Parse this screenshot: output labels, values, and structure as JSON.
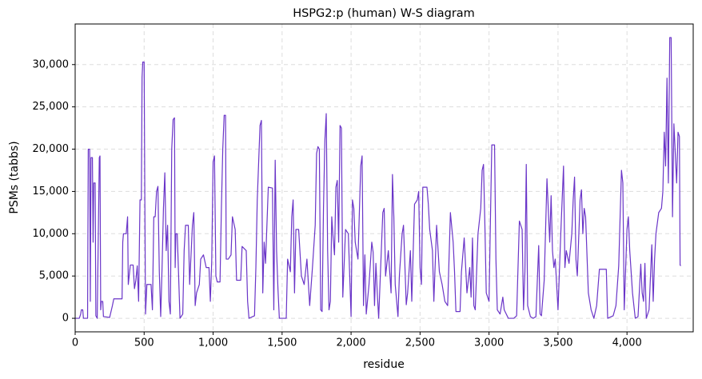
{
  "chart_data": {
    "type": "line",
    "title": "HSPG2:p (human) W-S diagram",
    "x_label": "residue",
    "y_label": "PSMs (tabbs)",
    "xlim": [
      0,
      4480
    ],
    "ylim": [
      -1600,
      34800
    ],
    "xticks": [
      0,
      500,
      {
        "value": 1000,
        "label": "1,000"
      },
      {
        "value": 1500,
        "label": "1,500"
      },
      {
        "value": 2000,
        "label": "2,000"
      },
      {
        "value": 2500,
        "label": "2,500"
      },
      {
        "value": 3000,
        "label": "3,000"
      },
      {
        "value": 3500,
        "label": "3,500"
      },
      {
        "value": 4000,
        "label": "4,000"
      }
    ],
    "yticks": [
      0,
      {
        "value": 5000,
        "label": "5,000"
      },
      {
        "value": 10000,
        "label": "10,000"
      },
      {
        "value": 15000,
        "label": "15,000"
      },
      {
        "value": 20000,
        "label": "20,000"
      },
      {
        "value": 25000,
        "label": "25,000"
      },
      {
        "value": 30000,
        "label": "30,000"
      }
    ],
    "grid": true,
    "series": [
      {
        "color": "#6a35c8",
        "x": [
          0,
          30,
          40,
          45,
          55,
          60,
          90,
          95,
          105,
          110,
          115,
          125,
          130,
          135,
          145,
          150,
          160,
          175,
          180,
          185,
          190,
          200,
          205,
          250,
          270,
          280,
          340,
          345,
          350,
          370,
          380,
          385,
          400,
          420,
          430,
          440,
          450,
          460,
          470,
          480,
          485,
          490,
          500,
          505,
          510,
          520,
          550,
          560,
          570,
          580,
          590,
          600,
          610,
          620,
          630,
          640,
          650,
          660,
          670,
          680,
          690,
          700,
          710,
          720,
          725,
          730,
          740,
          750,
          760,
          780,
          790,
          800,
          820,
          830,
          850,
          860,
          870,
          880,
          900,
          910,
          930,
          950,
          970,
          980,
          990,
          1000,
          1010,
          1020,
          1030,
          1050,
          1060,
          1070,
          1080,
          1090,
          1095,
          1110,
          1130,
          1140,
          1160,
          1170,
          1200,
          1210,
          1240,
          1250,
          1260,
          1300,
          1310,
          1320,
          1340,
          1350,
          1360,
          1370,
          1380,
          1400,
          1430,
          1440,
          1450,
          1460,
          1470,
          1480,
          1530,
          1540,
          1560,
          1570,
          1580,
          1590,
          1600,
          1620,
          1640,
          1660,
          1680,
          1700,
          1720,
          1740,
          1750,
          1760,
          1770,
          1780,
          1790,
          1800,
          1810,
          1820,
          1830,
          1840,
          1850,
          1860,
          1870,
          1880,
          1890,
          1900,
          1910,
          1920,
          1930,
          1940,
          1960,
          1980,
          2000,
          2010,
          2020,
          2030,
          2050,
          2070,
          2080,
          2090,
          2100,
          2110,
          2130,
          2150,
          2160,
          2170,
          2180,
          2190,
          2200,
          2230,
          2240,
          2250,
          2270,
          2290,
          2300,
          2310,
          2320,
          2340,
          2350,
          2370,
          2380,
          2400,
          2410,
          2430,
          2440,
          2460,
          2480,
          2490,
          2500,
          2510,
          2520,
          2550,
          2560,
          2570,
          2590,
          2600,
          2620,
          2640,
          2660,
          2680,
          2700,
          2720,
          2740,
          2750,
          2760,
          2790,
          2800,
          2820,
          2840,
          2860,
          2870,
          2880,
          2890,
          2900,
          2920,
          2940,
          2950,
          2960,
          2970,
          2980,
          3000,
          3010,
          3020,
          3040,
          3050,
          3060,
          3080,
          3100,
          3110,
          3140,
          3180,
          3200,
          3220,
          3240,
          3250,
          3260,
          3270,
          3280,
          3300,
          3320,
          3340,
          3360,
          3370,
          3380,
          3400,
          3420,
          3440,
          3450,
          3460,
          3470,
          3480,
          3500,
          3520,
          3540,
          3550,
          3560,
          3580,
          3600,
          3610,
          3620,
          3630,
          3640,
          3660,
          3670,
          3680,
          3690,
          3700,
          3710,
          3720,
          3740,
          3760,
          3780,
          3800,
          3850,
          3860,
          3900,
          3920,
          3940,
          3960,
          3970,
          3980,
          4000,
          4010,
          4020,
          4040,
          4060,
          4080,
          4100,
          4110,
          4120,
          4130,
          4140,
          4160,
          4180,
          4190,
          4200,
          4210,
          4230,
          4250,
          4260,
          4270,
          4280,
          4290,
          4300,
          4310,
          4320,
          4330,
          4340,
          4360,
          4370,
          4380,
          4385,
          4390
        ],
        "values": [
          0,
          0,
          500,
          1000,
          1000,
          0,
          0,
          20000,
          20000,
          2000,
          19000,
          19000,
          9000,
          16000,
          16000,
          300,
          0,
          19000,
          19200,
          1000,
          2000,
          2000,
          200,
          100,
          1500,
          2300,
          2300,
          9000,
          10000,
          10000,
          12000,
          4000,
          6300,
          6300,
          3500,
          4500,
          6200,
          2000,
          14000,
          14000,
          28500,
          30300,
          30300,
          14000,
          500,
          4000,
          4000,
          1000,
          12000,
          12000,
          15000,
          15600,
          5500,
          200,
          6000,
          13000,
          17200,
          8000,
          11000,
          2000,
          500,
          20000,
          23500,
          23700,
          6000,
          10000,
          10000,
          5000,
          0,
          500,
          8000,
          11000,
          11000,
          4000,
          11000,
          12500,
          1500,
          3000,
          4000,
          7000,
          7500,
          6000,
          6000,
          2000,
          6800,
          18500,
          19200,
          5000,
          4300,
          4300,
          13000,
          20000,
          24000,
          24000,
          7000,
          7000,
          7500,
          12000,
          10500,
          4500,
          4500,
          8500,
          8000,
          2000,
          0,
          300,
          6000,
          14000,
          22800,
          23400,
          3000,
          9000,
          6500,
          15500,
          15400,
          1000,
          18700,
          8000,
          3500,
          0,
          0,
          7000,
          5500,
          12000,
          14000,
          3000,
          10500,
          10500,
          5000,
          4000,
          7000,
          1500,
          6000,
          11000,
          19500,
          20300,
          20000,
          1000,
          800,
          13000,
          21000,
          24200,
          8000,
          1000,
          2000,
          12000,
          9500,
          7500,
          15500,
          16300,
          9000,
          22800,
          22500,
          2500,
          10500,
          10000,
          200,
          14000,
          13000,
          9000,
          7000,
          18000,
          19200,
          1500,
          7500,
          500,
          4000,
          9000,
          7800,
          1500,
          6500,
          3000,
          0,
          12500,
          13000,
          5000,
          8000,
          3000,
          17000,
          12000,
          4000,
          200,
          5000,
          10000,
          11000,
          1600,
          3000,
          8000,
          2000,
          13500,
          14000,
          15000,
          6000,
          4000,
          15500,
          15500,
          13500,
          10500,
          8000,
          2000,
          11000,
          5500,
          4000,
          2000,
          1500,
          12500,
          9000,
          5500,
          800,
          800,
          5500,
          9500,
          3000,
          6000,
          2500,
          9500,
          1500,
          1000,
          10000,
          13000,
          17500,
          18200,
          11000,
          3000,
          2000,
          11500,
          20500,
          20500,
          7000,
          1000,
          500,
          2500,
          1000,
          0,
          0,
          300,
          11500,
          10500,
          1000,
          5500,
          18200,
          1500,
          200,
          0,
          200,
          8600,
          500,
          300,
          4500,
          16500,
          9000,
          14500,
          8000,
          6000,
          7000,
          1000,
          10000,
          18000,
          6000,
          8000,
          6500,
          10000,
          14000,
          16700,
          7000,
          5000,
          14000,
          15200,
          10000,
          13000,
          12000,
          7500,
          3000,
          1000,
          0,
          1500,
          5800,
          5800,
          0,
          300,
          1500,
          6200,
          17500,
          16000,
          1000,
          10500,
          12000,
          8000,
          3000,
          0,
          200,
          6400,
          3000,
          2000,
          6500,
          0,
          1000,
          8700,
          2000,
          7000,
          10000,
          12500,
          13000,
          15000,
          22000,
          18000,
          28400,
          16000,
          33200,
          33200,
          12000,
          23000,
          16000,
          22000,
          21500,
          6300,
          6200
        ]
      }
    ]
  }
}
